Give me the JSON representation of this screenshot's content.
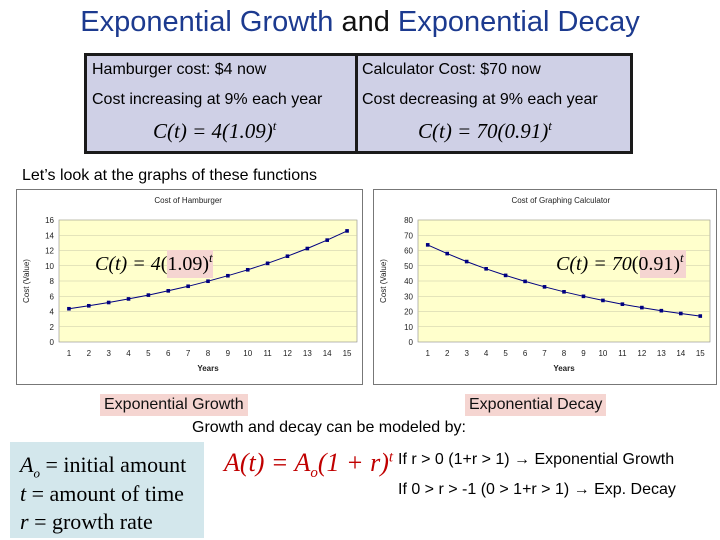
{
  "title": {
    "part1": "Exponential Growth",
    "part2": "and",
    "part3": "Exponential Decay"
  },
  "table": {
    "left": {
      "line1": "Hamburger cost: $4 now",
      "line2": "Cost increasing at 9% each year",
      "formula_lhs": "C(t) = 4(1.09)",
      "formula_exp": "t"
    },
    "right": {
      "line1": "Calculator Cost: $70 now",
      "line2": "Cost decreasing at 9% each year",
      "formula_lhs": "C(t) = 70(0.91)",
      "formula_exp": "t"
    }
  },
  "intro_text": "Let’s look at the graphs of these functions",
  "chart_data": [
    {
      "type": "line",
      "title": "Cost of Hamburger",
      "xlabel": "Years",
      "ylabel": "Cost (Value)",
      "x": [
        1,
        2,
        3,
        4,
        5,
        6,
        7,
        8,
        9,
        10,
        11,
        12,
        13,
        14,
        15
      ],
      "x_tick_labels": [
        "1",
        "2",
        "3",
        "4",
        "5",
        "6",
        "7",
        "8",
        "9",
        "10",
        "11",
        "12",
        "13",
        "14",
        "15"
      ],
      "y_ticks": [
        0,
        2,
        4,
        6,
        8,
        10,
        12,
        14,
        16
      ],
      "ylim": [
        0,
        16
      ],
      "series": [
        {
          "values": [
            4.36,
            4.75,
            5.18,
            5.65,
            6.15,
            6.71,
            7.31,
            7.97,
            8.69,
            9.47,
            10.32,
            11.25,
            12.26,
            13.36,
            14.57
          ]
        }
      ],
      "annotation": {
        "lhs": "C(t) = 4",
        "base": "(1.09)",
        "exp": "t"
      },
      "plot_bg": "#ffffcc",
      "line_color": "#000080",
      "highlight": "#f5d5d1",
      "grid": true
    },
    {
      "type": "line",
      "title": "Cost of Graphing Calculator",
      "xlabel": "Years",
      "ylabel": "Cost (Value)",
      "x": [
        1,
        2,
        3,
        4,
        5,
        6,
        7,
        8,
        9,
        10,
        11,
        12,
        13,
        14,
        15
      ],
      "x_tick_labels": [
        "1",
        "2",
        "3",
        "4",
        "5",
        "6",
        "7",
        "8",
        "9",
        "10",
        "11",
        "12",
        "13",
        "14",
        "15"
      ],
      "y_ticks": [
        0,
        10,
        20,
        30,
        40,
        50,
        60,
        70,
        80
      ],
      "ylim": [
        0,
        80
      ],
      "series": [
        {
          "values": [
            63.7,
            57.97,
            52.75,
            48.0,
            43.68,
            39.75,
            36.17,
            32.92,
            29.95,
            27.26,
            24.8,
            22.57,
            20.54,
            18.69,
            17.01
          ]
        }
      ],
      "annotation": {
        "lhs": "C(t) = 70",
        "base": "(0.91)",
        "exp": "t"
      },
      "plot_bg": "#ffffcc",
      "line_color": "#000080",
      "highlight": "#f5d5d1",
      "grid": true
    }
  ],
  "labels": {
    "growth": "Exponential Growth",
    "decay": "Exponential Decay"
  },
  "modeled_text": "Growth and decay can be modeled by:",
  "legend": {
    "line1_var": "A",
    "line1_sub": "o",
    "line1_text": "= initial amount",
    "line2_var": "t",
    "line2_text": "= amount of time",
    "line3_var": "r",
    "line3_text": "= growth rate"
  },
  "model": {
    "lhs": "A(t) = A",
    "sub": "o",
    "rhs": "(1 + r)",
    "exp": "t"
  },
  "rules": {
    "growth": "If r > 0 (1+r > 1) → Exponential Growth",
    "decay": "If 0 > r > -1 (0 > 1+r > 1) → Exp. Decay"
  },
  "colors": {
    "title_blue": "#1c3a8f",
    "table_bg": "#cfd0e6",
    "legend_bg": "#d3e7ec",
    "pink": "#f5d5d1"
  }
}
